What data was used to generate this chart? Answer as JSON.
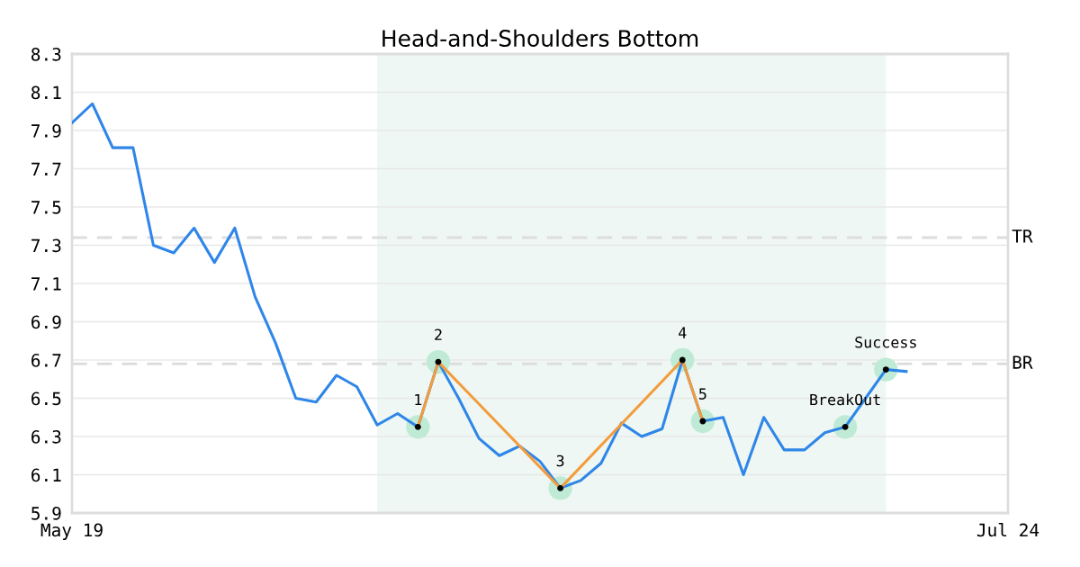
{
  "chart_data": {
    "type": "line",
    "title": "Head-and-Shoulders Bottom",
    "categories": [
      "May 19",
      null,
      null,
      null,
      null,
      null,
      null,
      null,
      null,
      null,
      null,
      null,
      null,
      null,
      null,
      null,
      null,
      null,
      null,
      null,
      null,
      null,
      null,
      null,
      null,
      null,
      null,
      null,
      null,
      null,
      null,
      null,
      null,
      null,
      null,
      null,
      null,
      null,
      null,
      null,
      null,
      null,
      null,
      null,
      null,
      null,
      "Jul 24"
    ],
    "ylim": [
      5.9,
      8.3
    ],
    "yticks": [
      5.9,
      6.1,
      6.3,
      6.5,
      6.7,
      6.9,
      7.1,
      7.3,
      7.5,
      7.7,
      7.9,
      8.1,
      8.3
    ],
    "grid": "y",
    "series": [
      {
        "color": "#2e86e8",
        "values": [
          7.94,
          8.04,
          7.81,
          7.81,
          7.3,
          7.26,
          7.39,
          7.21,
          7.39,
          7.03,
          6.79,
          6.5,
          6.48,
          6.62,
          6.56,
          6.36,
          6.42,
          6.35,
          6.69,
          6.5,
          6.29,
          6.2,
          6.25,
          6.17,
          6.03,
          6.07,
          6.16,
          6.37,
          6.3,
          6.34,
          6.7,
          6.38,
          6.4,
          6.1,
          6.4,
          6.23,
          6.23,
          6.32,
          6.35,
          6.5,
          6.65,
          6.64,
          null,
          null,
          null,
          null,
          null
        ]
      },
      {
        "type": "line",
        "color": "#f39c3c",
        "values": [
          null,
          null,
          null,
          null,
          null,
          null,
          null,
          null,
          null,
          null,
          null,
          null,
          null,
          null,
          null,
          null,
          null,
          6.35,
          6.69,
          null,
          null,
          null,
          null,
          null,
          6.03,
          null,
          null,
          null,
          null,
          null,
          6.7,
          6.38,
          null,
          null,
          null,
          null,
          null,
          null,
          null,
          null,
          null,
          null,
          null,
          null,
          null,
          null,
          null
        ]
      },
      {
        "type": "scatter",
        "color": "#bfead6",
        "values": [
          null,
          null,
          null,
          null,
          null,
          null,
          null,
          null,
          null,
          null,
          null,
          null,
          null,
          null,
          null,
          null,
          null,
          6.35,
          6.69,
          null,
          null,
          null,
          null,
          null,
          6.03,
          null,
          null,
          null,
          null,
          null,
          6.7,
          6.38,
          null,
          null,
          null,
          null,
          null,
          null,
          6.35,
          null,
          6.65,
          null,
          null,
          null,
          null,
          null,
          null
        ]
      }
    ],
    "ref_lines": [
      {
        "axis": "y",
        "value": 7.34,
        "label": "TR",
        "color": "#dddddd",
        "line_style": "dashed"
      },
      {
        "axis": "y",
        "value": 6.68,
        "label": "BR",
        "color": "#dddddd",
        "line_style": "dashed"
      }
    ],
    "annotations": [
      "1",
      "2",
      "3",
      "4",
      "5",
      "BreakOut",
      "Success"
    ]
  }
}
